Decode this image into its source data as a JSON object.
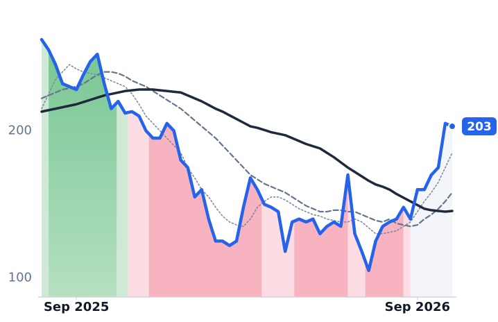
{
  "chart_data": {
    "type": "line",
    "x": [
      0,
      1,
      2,
      3,
      4,
      5,
      6,
      7,
      8,
      9,
      10,
      11,
      12,
      13,
      14,
      15,
      16,
      17,
      18,
      19,
      20,
      21,
      22,
      23,
      24,
      25,
      26,
      27,
      28,
      29,
      30,
      31,
      32,
      33,
      34,
      35,
      36,
      37,
      38,
      39,
      40,
      41,
      42,
      43,
      44,
      45,
      46,
      47,
      48,
      49,
      50,
      51,
      52,
      53,
      54,
      55,
      56,
      57,
      58,
      59
    ],
    "xlim": [
      0,
      59
    ],
    "xticks": [
      {
        "value": 5,
        "label": "Sep 2025"
      },
      {
        "value": 54,
        "label": "Sep 2026"
      }
    ],
    "ylim": [
      87,
      270
    ],
    "yticks": [
      100,
      200
    ],
    "series": [
      {
        "style": "price",
        "color": "#2563eb",
        "values": [
          262,
          255,
          245,
          232,
          230,
          228,
          238,
          247,
          252,
          232,
          215,
          220,
          212,
          213,
          210,
          200,
          195,
          195,
          205,
          200,
          180,
          175,
          155,
          160,
          140,
          125,
          125,
          122,
          125,
          148,
          168,
          160,
          150,
          148,
          145,
          118,
          138,
          140,
          138,
          140,
          130,
          135,
          138,
          135,
          170,
          130,
          118,
          105,
          125,
          135,
          138,
          140,
          148,
          140,
          160,
          160,
          170,
          175,
          205,
          203
        ]
      },
      {
        "style": "long",
        "color": "#1e293b",
        "values": [
          213,
          214,
          215,
          216,
          217,
          218,
          219.5,
          221,
          222.5,
          224,
          225,
          226,
          227,
          227.5,
          228,
          228,
          228,
          227.5,
          227,
          226.5,
          226,
          224,
          222,
          220,
          217.5,
          215,
          213,
          210.5,
          208,
          205.5,
          203,
          202,
          200.5,
          199,
          198,
          197,
          195,
          193,
          191,
          189.5,
          188,
          185,
          182,
          178.5,
          175,
          172,
          169,
          166,
          163.5,
          162,
          160,
          157,
          154.5,
          152,
          149.5,
          147,
          146,
          145.5,
          145,
          145.5
        ]
      },
      {
        "style": "dashed",
        "color": "#64748b",
        "values": [
          222,
          224,
          226,
          228,
          229,
          230,
          232,
          235,
          238,
          240,
          240,
          239,
          237,
          234,
          232,
          230,
          227,
          224,
          221,
          218,
          215,
          211,
          207,
          203,
          199,
          195,
          190,
          185,
          180,
          175,
          170,
          167,
          164,
          162,
          160,
          158,
          155,
          152,
          149,
          147,
          145,
          145,
          146,
          146,
          145,
          145,
          143,
          141,
          139,
          138,
          140,
          137,
          136,
          135,
          136,
          140,
          143,
          147,
          152,
          158
        ]
      },
      {
        "style": "dotted",
        "color": "#7c8ba1",
        "values": [
          215,
          225,
          235,
          240,
          245,
          242,
          240,
          239,
          238,
          236,
          234,
          232,
          230,
          225,
          218,
          210,
          205,
          200,
          195,
          190,
          185,
          175,
          168,
          160,
          155,
          148,
          142,
          138,
          136,
          135,
          140,
          148,
          152,
          155,
          155,
          153,
          150,
          147,
          145,
          143,
          142,
          140,
          139,
          138,
          138,
          140,
          138,
          134,
          130,
          130,
          131,
          132,
          135,
          138,
          145,
          152,
          158,
          165,
          175,
          185
        ]
      }
    ],
    "regions": [
      {
        "start": 0,
        "end": 1,
        "color": "#cfe9d6"
      },
      {
        "start": 1,
        "end": 10.8,
        "color": "url(#gGreen)"
      },
      {
        "start": 10.8,
        "end": 12.4,
        "color": "#cfe9d6"
      },
      {
        "start": 12.4,
        "end": 15.4,
        "color": "#fbdde3"
      },
      {
        "start": 15.4,
        "end": 31.6,
        "color": "#f7b3c0"
      },
      {
        "start": 31.6,
        "end": 36.3,
        "color": "#fbdde3"
      },
      {
        "start": 36.3,
        "end": 44,
        "color": "#f7b3c0"
      },
      {
        "start": 44,
        "end": 46.5,
        "color": "#fbdde3"
      },
      {
        "start": 46.5,
        "end": 52,
        "color": "#f7b3c0"
      },
      {
        "start": 52,
        "end": 53,
        "color": "#fbdde3"
      },
      {
        "start": 53,
        "end": 59,
        "color": "#f3f5f9"
      }
    ]
  }
}
